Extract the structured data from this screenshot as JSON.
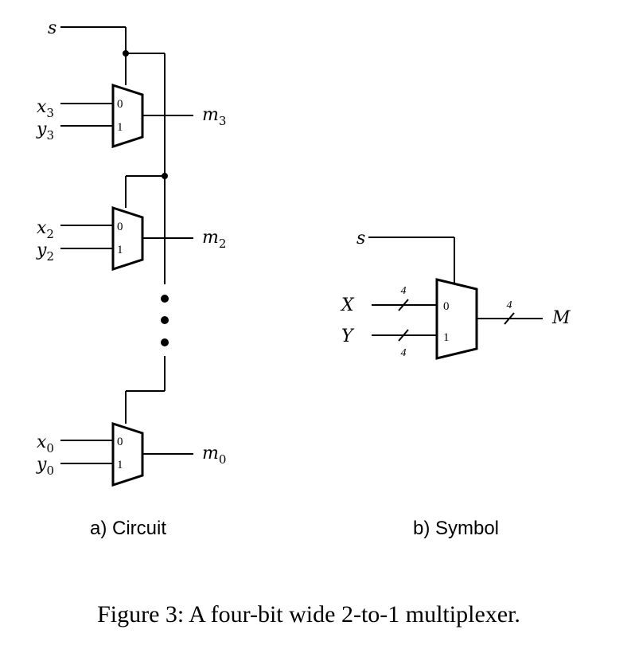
{
  "circuit": {
    "select_label": "s",
    "stages": [
      {
        "x_base": "x",
        "y_base": "y",
        "m_base": "m",
        "index": "3",
        "pin0": "0",
        "pin1": "1"
      },
      {
        "x_base": "x",
        "y_base": "y",
        "m_base": "m",
        "index": "2",
        "pin0": "0",
        "pin1": "1"
      },
      {
        "x_base": "x",
        "y_base": "y",
        "m_base": "m",
        "index": "0",
        "pin0": "0",
        "pin1": "1"
      }
    ],
    "caption": "a) Circuit"
  },
  "symbol": {
    "select_label": "s",
    "input_x": "X",
    "input_y": "Y",
    "output": "M",
    "width_x": "4",
    "width_y": "4",
    "width_out": "4",
    "pin0": "0",
    "pin1": "1",
    "caption": "b) Symbol"
  },
  "figure_caption": "Figure 3: A four-bit wide 2-to-1 multiplexer."
}
